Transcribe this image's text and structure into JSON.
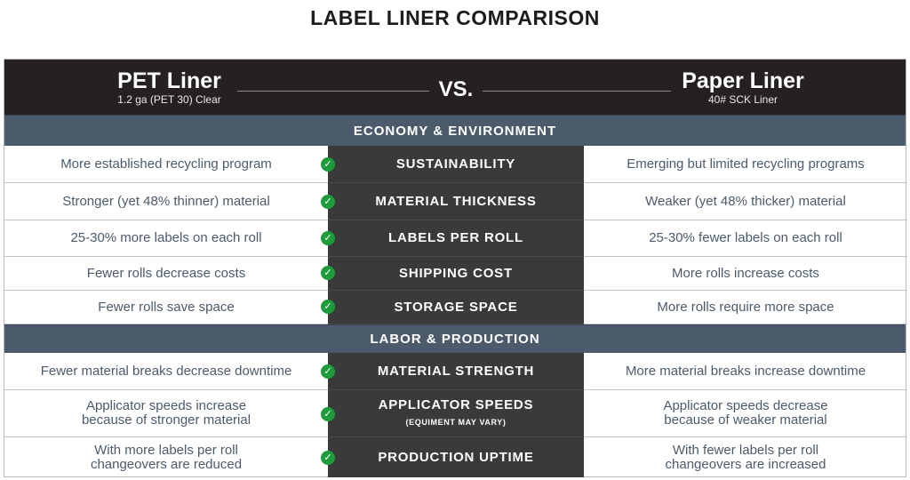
{
  "title": "LABEL LINER COMPARISON",
  "header": {
    "left_title": "PET Liner",
    "left_sub": "1.2 ga (PET 30) Clear",
    "vs": "VS.",
    "right_title": "Paper Liner",
    "right_sub": "40# SCK Liner"
  },
  "sections": [
    {
      "label": "ECONOMY & ENVIRONMENT",
      "rows": [
        {
          "left": "More established recycling program",
          "mid": "SUSTAINABILITY",
          "right": "Emerging but limited recycling programs"
        },
        {
          "left": "Stronger (yet 48% thinner) material",
          "mid": "MATERIAL THICKNESS",
          "right": "Weaker (yet 48% thicker) material"
        },
        {
          "left": "25-30% more labels on each roll",
          "mid": "LABELS PER ROLL",
          "right": "25-30% fewer labels on each roll"
        },
        {
          "left": "Fewer rolls decrease costs",
          "mid": "SHIPPING COST",
          "right": "More rolls increase costs"
        },
        {
          "left": "Fewer rolls save space",
          "mid": "STORAGE SPACE",
          "right": "More rolls require more space"
        }
      ]
    },
    {
      "label": "LABOR & PRODUCTION",
      "rows": [
        {
          "left": "Fewer material breaks decrease downtime",
          "mid": "MATERIAL STRENGTH",
          "right": "More material breaks increase downtime"
        },
        {
          "left": "Applicator speeds increase\nbecause of stronger material",
          "mid": "APPLICATOR SPEEDS",
          "note": "(EQUIMENT MAY VARY)",
          "right": "Applicator speeds decrease\nbecause of weaker material"
        },
        {
          "left": "With more labels per roll\nchangeovers are reduced",
          "mid": "PRODUCTION UPTIME",
          "right": "With fewer labels per roll\nchangeovers are increased"
        }
      ]
    }
  ],
  "icons": {
    "check": "check-circle-icon"
  },
  "colors": {
    "header_bg": "#252122",
    "section_bg": "#4b5b6b",
    "mid_col_bg": "#3a3a3a",
    "check": "#1e9c3c",
    "text": "#4b5b6b"
  }
}
